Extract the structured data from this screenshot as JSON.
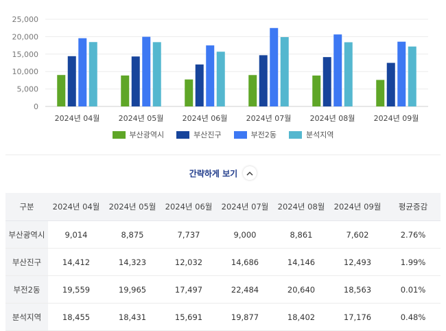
{
  "chart_data": {
    "type": "bar",
    "categories": [
      "2024년 04월",
      "2024년 05월",
      "2024년 06월",
      "2024년 07월",
      "2024년 08월",
      "2024년 09월"
    ],
    "ylim": [
      0,
      25000
    ],
    "yticks": [
      "0",
      "5,000",
      "10,000",
      "15,000",
      "20,000",
      "25,000"
    ],
    "ytick_values": [
      0,
      5000,
      10000,
      15000,
      20000,
      25000
    ],
    "grid": true,
    "legend_position": "bottom",
    "series": [
      {
        "name": "부산광역시",
        "color": "#5fa627",
        "values": [
          9014,
          8875,
          7737,
          9000,
          8861,
          7602
        ]
      },
      {
        "name": "부산진구",
        "color": "#17449b",
        "values": [
          14412,
          14323,
          12032,
          14686,
          14146,
          12493
        ]
      },
      {
        "name": "부전2동",
        "color": "#3d78f3",
        "values": [
          19559,
          19965,
          17497,
          22484,
          20640,
          18563
        ]
      },
      {
        "name": "분석지역",
        "color": "#54b7cf",
        "values": [
          18455,
          18431,
          15691,
          19877,
          18402,
          17176
        ]
      }
    ]
  },
  "toggle": {
    "label": "간략하게 보기",
    "icon": "chevron-up-icon"
  },
  "table": {
    "headers": [
      "구분",
      "2024년 04월",
      "2024년 05월",
      "2024년 06월",
      "2024년 07월",
      "2024년 08월",
      "2024년 09월",
      "평균증감"
    ],
    "rows": [
      {
        "label": "부산광역시",
        "values": [
          "9,014",
          "8,875",
          "7,737",
          "9,000",
          "8,861",
          "7,602"
        ],
        "avg": "2.76%"
      },
      {
        "label": "부산진구",
        "values": [
          "14,412",
          "14,323",
          "12,032",
          "14,686",
          "14,146",
          "12,493"
        ],
        "avg": "1.99%"
      },
      {
        "label": "부전2동",
        "values": [
          "19,559",
          "19,965",
          "17,497",
          "22,484",
          "20,640",
          "18,563"
        ],
        "avg": "0.01%"
      },
      {
        "label": "분석지역",
        "values": [
          "18,455",
          "18,431",
          "15,691",
          "19,877",
          "18,402",
          "17,176"
        ],
        "avg": "0.48%"
      }
    ]
  }
}
